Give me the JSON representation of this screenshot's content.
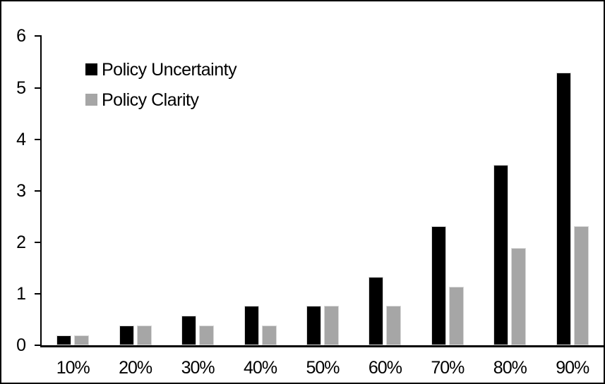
{
  "chart_data": {
    "type": "bar",
    "categories": [
      "10%",
      "20%",
      "30%",
      "40%",
      "50%",
      "60%",
      "70%",
      "80%",
      "90%"
    ],
    "series": [
      {
        "name": "Policy Uncertainty",
        "color": "#000000",
        "values": [
          0.19,
          0.38,
          0.57,
          0.76,
          0.77,
          1.33,
          2.31,
          3.5,
          5.3
        ]
      },
      {
        "name": "Policy Clarity",
        "color": "#a6a6a6",
        "values": [
          0.19,
          0.38,
          0.38,
          0.38,
          0.77,
          0.77,
          1.14,
          1.89,
          2.31
        ]
      }
    ],
    "title": "",
    "xlabel": "",
    "ylabel": "",
    "ylim": [
      0,
      6
    ],
    "yticks": [
      "0",
      "1",
      "2",
      "3",
      "4",
      "5",
      "6"
    ],
    "grid": false,
    "legend_position": "inside-top-left",
    "bar_outline_color": "#d9d9d9",
    "axis_color": "#000000",
    "frame_border_color": "#000000",
    "background_color": "#ffffff"
  }
}
